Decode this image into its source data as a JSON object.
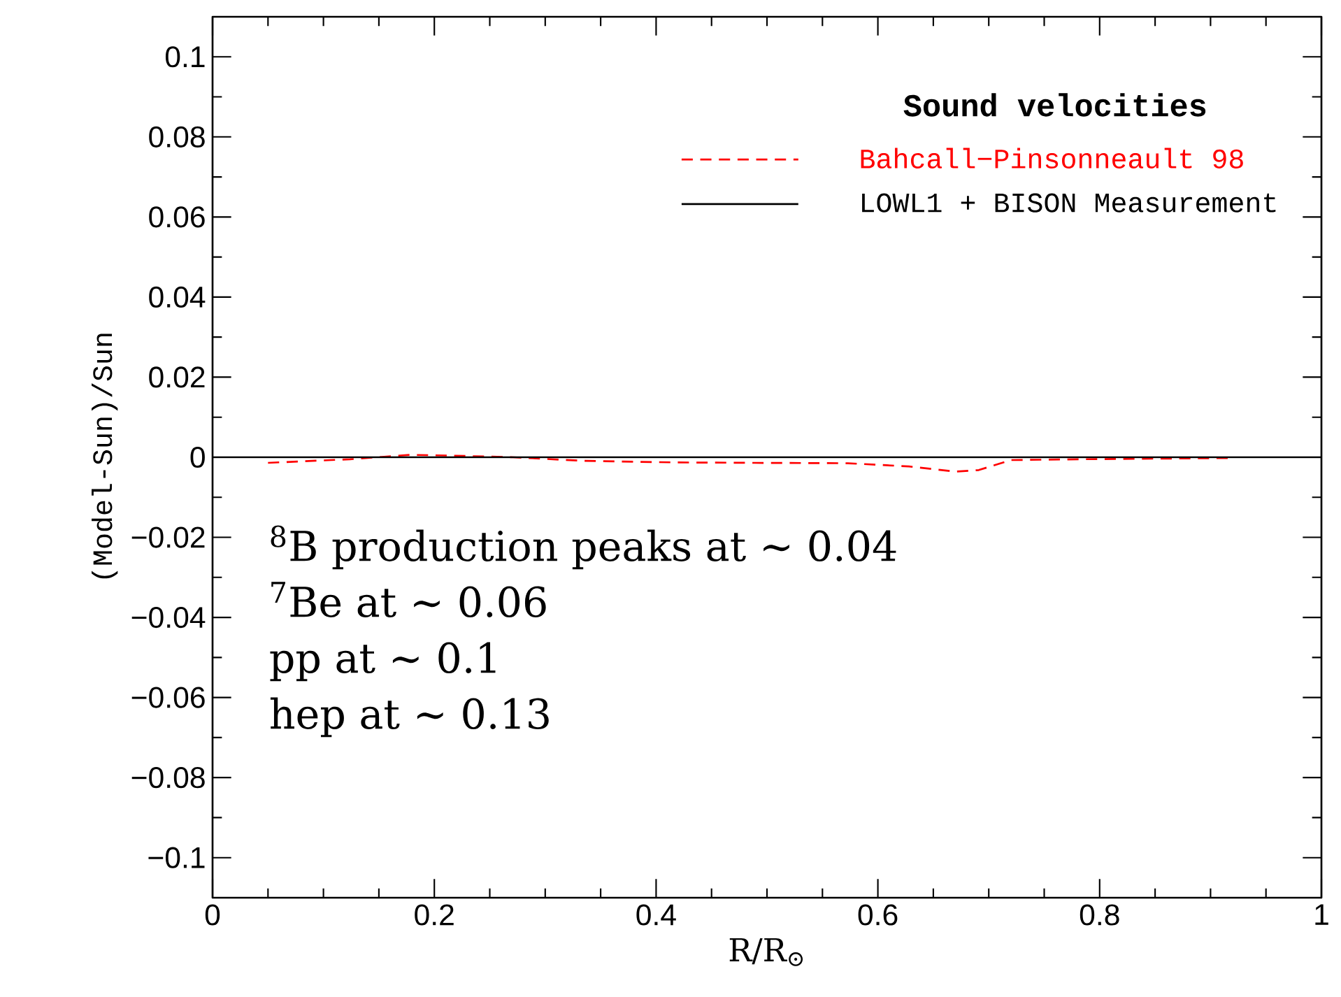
{
  "chart_data": {
    "type": "line",
    "title": "Sound velocities",
    "xlabel": "R/R$_{⊙}$",
    "ylabel": "(Model-Sun)/Sun",
    "annotations": [
      "$^{8}$B production peaks at ∼ 0.04",
      "$^{7}$Be at ∼ 0.06",
      "pp at ∼ 0.1",
      "hep at ∼ 0.13"
    ],
    "series": [
      {
        "name": "Bahcall−Pinsonneault 98",
        "color": "#ff0000",
        "line_style": "dashed",
        "x": [
          0.05,
          0.124,
          0.178,
          0.216,
          0.271,
          0.334,
          0.418,
          0.489,
          0.573,
          0.628,
          0.67,
          0.691,
          0.72,
          0.783,
          0.918
        ],
        "values": [
          -0.0014,
          -0.0005,
          0.0006,
          0.0004,
          0,
          -0.0009,
          -0.0013,
          -0.0014,
          -0.0015,
          -0.0023,
          -0.0036,
          -0.0032,
          -0.0007,
          -0.0005,
          -0.0002
        ]
      },
      {
        "name": "LOWL1 + BISON Measurement",
        "color": "#000000",
        "line_style": "solid",
        "x": [
          0,
          1
        ],
        "values": [
          0,
          0
        ]
      }
    ],
    "xlim": [
      0,
      1
    ],
    "ylim": [
      -0.11,
      0.11
    ],
    "xticks": [
      0,
      0.2,
      0.4,
      0.6,
      0.8,
      1
    ],
    "yticks": [
      {
        "value": -0.1,
        "label": "−0.1"
      },
      {
        "value": -0.08,
        "label": "−0.08"
      },
      {
        "value": -0.06,
        "label": "−0.06"
      },
      {
        "value": -0.04,
        "label": "−0.04"
      },
      {
        "value": -0.02,
        "label": "−0.02"
      },
      0,
      0.02,
      0.04,
      0.06,
      0.08,
      0.1
    ],
    "legend": "top right",
    "marker": "none",
    "grid": false
  }
}
